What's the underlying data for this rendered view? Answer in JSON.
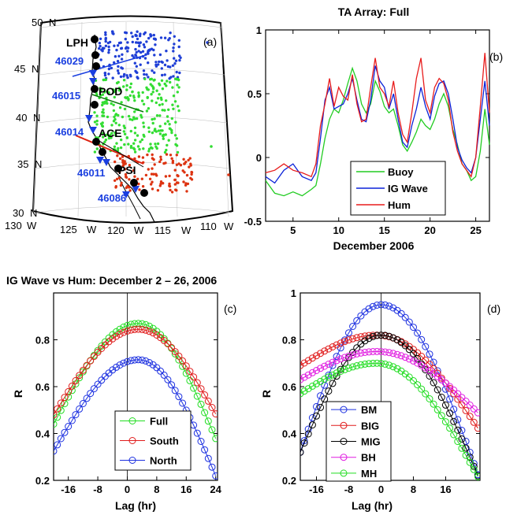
{
  "chart_data": [
    {
      "panel": "(a)",
      "type": "map",
      "panel_label": "(a)",
      "lat_labels": [
        "50",
        "45",
        "40",
        "35",
        "30"
      ],
      "lat_unit": "N",
      "lon_labels": [
        "130",
        "125",
        "120",
        "115",
        "110"
      ],
      "lon_unit": "W",
      "stations": [
        "LPH",
        "POD",
        "ACE",
        "PSI"
      ],
      "buoys": [
        "46029",
        "46015",
        "46014",
        "46011",
        "46086"
      ],
      "colors": {
        "north": "#1f3fd6",
        "central": "#33dd33",
        "south": "#dd3311",
        "buoy": "#1a3fe0",
        "station": "#000000"
      }
    },
    {
      "panel": "(b)",
      "type": "line",
      "title": "TA  Array:  Full",
      "panel_label": "(b)",
      "xlabel": "December  2006",
      "ylabel": "",
      "xlim": [
        2,
        26.5
      ],
      "ylim": [
        -0.5,
        1
      ],
      "xticks": [
        "5",
        "10",
        "15",
        "20",
        "25"
      ],
      "yticks": [
        "-0.5",
        "0",
        "0.5",
        "1"
      ],
      "legend": "lower-center",
      "series": [
        {
          "name": "Buoy",
          "color": "#22cc22",
          "x": [
            2,
            3,
            4,
            5,
            6,
            7,
            7.5,
            8,
            8.5,
            9,
            9.5,
            10,
            10.5,
            11,
            11.5,
            12,
            12.5,
            13,
            13.5,
            14,
            14.5,
            15,
            15.5,
            16,
            16.5,
            17,
            17.5,
            18,
            18.5,
            19,
            19.5,
            20,
            20.5,
            21,
            21.5,
            22,
            22.5,
            23,
            23.5,
            24,
            24.5,
            25,
            25.5,
            26,
            26.5
          ],
          "y": [
            -0.18,
            -0.28,
            -0.3,
            -0.27,
            -0.3,
            -0.25,
            -0.22,
            -0.05,
            0.15,
            0.3,
            0.38,
            0.35,
            0.45,
            0.58,
            0.7,
            0.6,
            0.42,
            0.35,
            0.42,
            0.6,
            0.52,
            0.4,
            0.35,
            0.38,
            0.25,
            0.1,
            0.05,
            0.12,
            0.2,
            0.3,
            0.25,
            0.22,
            0.3,
            0.42,
            0.5,
            0.4,
            0.22,
            0.1,
            -0.05,
            -0.1,
            -0.18,
            -0.15,
            0.05,
            0.38,
            0.1
          ]
        },
        {
          "name": "IG Wave",
          "color": "#0b22d8",
          "x": [
            2,
            3,
            4,
            5,
            6,
            7,
            7.5,
            8,
            8.5,
            9,
            9.5,
            10,
            10.5,
            11,
            11.5,
            12,
            12.5,
            13,
            13.5,
            14,
            14.5,
            15,
            15.5,
            16,
            16.5,
            17,
            17.5,
            18,
            18.5,
            19,
            19.5,
            20,
            20.5,
            21,
            21.5,
            22,
            22.5,
            23,
            23.5,
            24,
            24.5,
            25,
            25.5,
            26,
            26.5
          ],
          "y": [
            -0.15,
            -0.2,
            -0.1,
            -0.05,
            -0.15,
            -0.18,
            -0.12,
            0.15,
            0.45,
            0.55,
            0.38,
            0.4,
            0.42,
            0.5,
            0.62,
            0.45,
            0.3,
            0.28,
            0.45,
            0.72,
            0.6,
            0.55,
            0.38,
            0.5,
            0.3,
            0.12,
            0.08,
            0.25,
            0.38,
            0.55,
            0.4,
            0.3,
            0.48,
            0.58,
            0.6,
            0.5,
            0.3,
            0.08,
            -0.02,
            -0.08,
            -0.12,
            0.0,
            0.3,
            0.6,
            0.25
          ]
        },
        {
          "name": "Hum",
          "color": "#e81c1c",
          "x": [
            2,
            3,
            4,
            5,
            6,
            7,
            7.5,
            8,
            8.5,
            9,
            9.5,
            10,
            10.5,
            11,
            11.5,
            12,
            12.5,
            13,
            13.5,
            14,
            14.5,
            15,
            15.5,
            16,
            16.5,
            17,
            17.5,
            18,
            18.5,
            19,
            19.5,
            20,
            20.5,
            21,
            21.5,
            22,
            22.5,
            23,
            23.5,
            24,
            24.5,
            25,
            25.5,
            26,
            26.5
          ],
          "y": [
            -0.12,
            -0.1,
            -0.05,
            -0.1,
            -0.12,
            -0.15,
            -0.05,
            0.25,
            0.42,
            0.62,
            0.4,
            0.55,
            0.48,
            0.45,
            0.65,
            0.42,
            0.28,
            0.3,
            0.55,
            0.78,
            0.55,
            0.5,
            0.4,
            0.6,
            0.35,
            0.18,
            0.12,
            0.35,
            0.62,
            0.78,
            0.45,
            0.35,
            0.55,
            0.62,
            0.58,
            0.45,
            0.2,
            0.05,
            -0.05,
            -0.1,
            -0.15,
            0.0,
            0.4,
            0.82,
            0.35
          ]
        }
      ]
    },
    {
      "panel": "(c)",
      "type": "line",
      "title": "IG  Wave  vs  Hum:  December  2 – 26,  2006",
      "panel_label": "(c)",
      "xlabel": "Lag  (hr)",
      "ylabel": "R",
      "xlim": [
        -20,
        24.5
      ],
      "ylim": [
        0.2,
        1.0
      ],
      "xticks": [
        "-16",
        "-8",
        "0",
        "8",
        "16",
        "24"
      ],
      "yticks": [
        "0.2",
        "0.4",
        "0.6",
        "0.8"
      ],
      "legend": "lower-center",
      "series": [
        {
          "name": "Full",
          "color": "#22dd22",
          "peak_x": 3,
          "peak_r": 0.87,
          "r_at_min": 0.44,
          "r_at_max": 0.36
        },
        {
          "name": "South",
          "color": "#e01c1c",
          "peak_x": 3,
          "peak_r": 0.845,
          "r_at_min": 0.48,
          "r_at_max": 0.47
        },
        {
          "name": "North",
          "color": "#1c30e0",
          "peak_x": 3,
          "peak_r": 0.715,
          "r_at_min": 0.325,
          "r_at_max": 0.2
        }
      ]
    },
    {
      "panel": "(d)",
      "type": "line",
      "title": "",
      "panel_label": "(d)",
      "xlabel": "Lag  (hr)",
      "ylabel": "R",
      "xlim": [
        -20,
        24.5
      ],
      "ylim": [
        0.2,
        1.0
      ],
      "xticks": [
        "-16",
        "-8",
        "0",
        "8",
        "16"
      ],
      "yticks": [
        "0.2",
        "0.4",
        "0.6",
        "0.8",
        "1"
      ],
      "legend": "lower-center",
      "series": [
        {
          "name": "BM",
          "color": "#1c30e0",
          "peak_x": 0,
          "peak_r": 0.95,
          "r_at_min": 0.32,
          "r_at_max": 0.2
        },
        {
          "name": "BIG",
          "color": "#e01c1c",
          "peak_x": -1,
          "peak_r": 0.82,
          "r_at_min": 0.69,
          "r_at_max": 0.41
        },
        {
          "name": "MIG",
          "color": "#000000",
          "peak_x": 0,
          "peak_r": 0.82,
          "r_at_min": 0.32,
          "r_at_max": 0.2
        },
        {
          "name": "BH",
          "color": "#e01ce0",
          "peak_x": -1,
          "peak_r": 0.75,
          "r_at_min": 0.63,
          "r_at_max": 0.48
        },
        {
          "name": "MH",
          "color": "#22dd22",
          "peak_x": -1,
          "peak_r": 0.7,
          "r_at_min": 0.57,
          "r_at_max": 0.2
        }
      ]
    }
  ]
}
